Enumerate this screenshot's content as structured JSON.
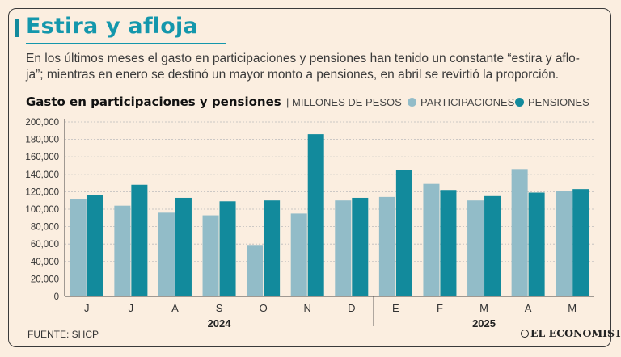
{
  "headline": "Estira y afloja",
  "dek": "En los últimos meses el gasto en participaciones y pensiones han tenido un constante “estira y aflo-ja”; mientras en enero se destinó un mayor monto a pensiones, en abril se revirtió la proporción.",
  "source": "FUENTE: SHCP",
  "brand": "EL ECONOMISTA",
  "chart_data": {
    "type": "bar",
    "title": "Gasto en participaciones y pensiones",
    "unit": "MILLONES DE PESOS",
    "categories": [
      "J",
      "J",
      "A",
      "S",
      "O",
      "N",
      "D",
      "E",
      "F",
      "M",
      "A",
      "M"
    ],
    "year_groups": [
      {
        "label": "2024",
        "start": 0,
        "end": 6
      },
      {
        "label": "2025",
        "start": 7,
        "end": 11
      }
    ],
    "series": [
      {
        "name": "PARTICIPACIONES",
        "color": "#92bcc8",
        "values": [
          112000,
          104000,
          96000,
          93000,
          59000,
          95000,
          110000,
          114000,
          129000,
          110000,
          146000,
          121000
        ]
      },
      {
        "name": "PENSIONES",
        "color": "#128a9c",
        "values": [
          116000,
          128000,
          113000,
          109000,
          110000,
          186000,
          113000,
          145000,
          122000,
          115000,
          119000,
          123000
        ]
      }
    ],
    "ylim": [
      0,
      200000
    ],
    "yticks": [
      "0",
      "20,000",
      "40,000",
      "60,000",
      "80,000",
      "100,000",
      "120,000",
      "140,000",
      "160,000",
      "180,000",
      "200,000"
    ],
    "legend_position": "top-right",
    "grid": true
  }
}
